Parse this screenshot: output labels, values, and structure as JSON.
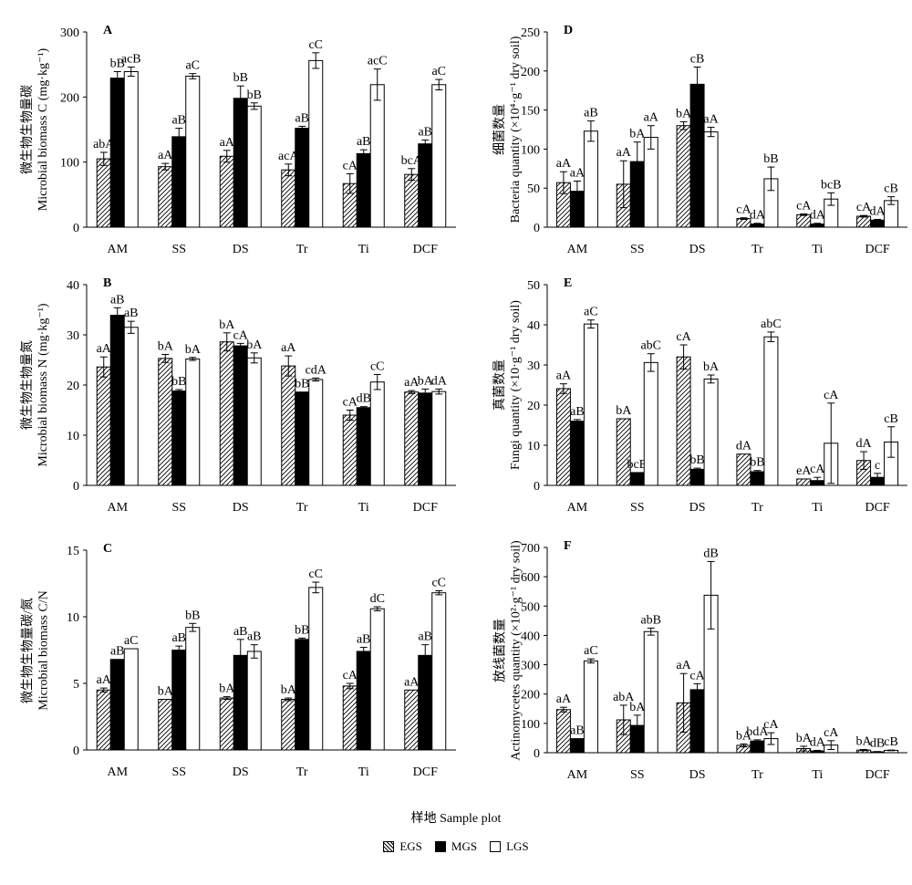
{
  "x_axis_label": "样地 Sample plot",
  "legend": [
    {
      "name": "EGS",
      "fill": "hatch"
    },
    {
      "name": "MGS",
      "fill": "solid"
    },
    {
      "name": "LGS",
      "fill": "open"
    }
  ],
  "chart_data": [
    {
      "panel": "A",
      "type": "bar",
      "ylabel_cn": "微生物生物量碳",
      "ylabel_en": "Microbial biomass C (mg·kg⁻¹)",
      "ylim": [
        0,
        300
      ],
      "yticks": [
        0,
        100,
        200,
        300
      ],
      "categories": [
        "AM",
        "SS",
        "DS",
        "Tr",
        "Ti",
        "DCF"
      ],
      "series": [
        {
          "name": "EGS",
          "values": [
            105,
            93,
            109,
            88,
            67,
            81
          ],
          "errors": [
            10,
            5,
            9,
            9,
            15,
            9
          ],
          "labels": [
            "abA",
            "aA",
            "aA",
            "acA",
            "cA",
            "bcA"
          ]
        },
        {
          "name": "MGS",
          "values": [
            229,
            139,
            198,
            152,
            113,
            128
          ],
          "errors": [
            10,
            13,
            19,
            3,
            6,
            6
          ],
          "labels": [
            "bB",
            "aB",
            "bB",
            "aB",
            "aB",
            "aB"
          ]
        },
        {
          "name": "LGS",
          "values": [
            239,
            232,
            186,
            256,
            219,
            219
          ],
          "errors": [
            7,
            4,
            5,
            12,
            24,
            8
          ],
          "labels": [
            "acB",
            "aC",
            "bB",
            "cC",
            "acC",
            "aC"
          ]
        }
      ]
    },
    {
      "panel": "D",
      "type": "bar",
      "ylabel_cn": "细菌数量",
      "ylabel_en": "Bacteria quantity (×10⁴·g⁻¹ dry soil)",
      "ylim": [
        0,
        250
      ],
      "yticks": [
        0,
        50,
        100,
        150,
        200,
        250
      ],
      "categories": [
        "AM",
        "SS",
        "DS",
        "Tr",
        "Ti",
        "DCF"
      ],
      "series": [
        {
          "name": "EGS",
          "values": [
            57,
            55,
            130,
            11,
            16,
            14
          ],
          "errors": [
            14,
            30,
            5,
            1,
            1,
            1
          ],
          "labels": [
            "aA",
            "aA",
            "bA",
            "cA",
            "cA",
            "cA"
          ]
        },
        {
          "name": "MGS",
          "values": [
            46,
            84,
            183,
            4,
            4,
            9
          ],
          "errors": [
            13,
            25,
            22,
            1,
            1,
            1
          ],
          "labels": [
            "aA",
            "bA",
            "cB",
            "dA",
            "dA",
            "dA"
          ]
        },
        {
          "name": "LGS",
          "values": [
            123,
            115,
            122,
            62,
            36,
            34
          ],
          "errors": [
            13,
            15,
            6,
            15,
            8,
            5
          ],
          "labels": [
            "aB",
            "aA",
            "aA",
            "bB",
            "bcB",
            "cB"
          ]
        }
      ]
    },
    {
      "panel": "B",
      "type": "bar",
      "ylabel_cn": "微生物生物量氮",
      "ylabel_en": "Microbial biomass N (mg·kg⁻¹)",
      "ylim": [
        0,
        40
      ],
      "yticks": [
        0,
        10,
        20,
        30,
        40
      ],
      "categories": [
        "AM",
        "SS",
        "DS",
        "Tr",
        "Ti",
        "DCF"
      ],
      "series": [
        {
          "name": "EGS",
          "values": [
            23.6,
            25.3,
            28.6,
            23.8,
            14,
            18.6
          ],
          "errors": [
            2,
            0.8,
            1.8,
            2,
            1,
            0.3
          ],
          "labels": [
            "aA",
            "bA",
            "bA",
            "aA",
            "cA",
            "aA"
          ]
        },
        {
          "name": "MGS",
          "values": [
            33.9,
            18.8,
            27.8,
            18.6,
            15.5,
            18.4
          ],
          "errors": [
            1.5,
            0.3,
            0.5,
            0,
            0.2,
            0.8
          ],
          "labels": [
            "aB",
            "bB",
            "cA",
            "bB",
            "dB",
            "bA"
          ]
        },
        {
          "name": "LGS",
          "values": [
            31.5,
            25.2,
            25.4,
            21.1,
            20.6,
            18.7
          ],
          "errors": [
            1.2,
            0.3,
            1,
            0.3,
            1.5,
            0.5
          ],
          "labels": [
            "aB",
            "bA",
            "bA",
            "cdA",
            "cC",
            "dA"
          ]
        }
      ]
    },
    {
      "panel": "E",
      "type": "bar",
      "ylabel_cn": "真菌数量",
      "ylabel_en": "Fungi quantity (×10·g⁻¹ dry soil)",
      "ylim": [
        0,
        50
      ],
      "yticks": [
        0,
        10,
        20,
        30,
        40,
        50
      ],
      "categories": [
        "AM",
        "SS",
        "DS",
        "Tr",
        "Ti",
        "DCF"
      ],
      "series": [
        {
          "name": "EGS",
          "values": [
            24.1,
            16.6,
            32,
            7.8,
            1.6,
            6.2
          ],
          "errors": [
            1.2,
            0,
            3,
            0,
            0,
            2.2
          ],
          "labels": [
            "aA",
            "bA",
            "cA",
            "dA",
            "eA",
            "dA"
          ]
        },
        {
          "name": "MGS",
          "values": [
            16,
            3.2,
            4,
            3.4,
            1.2,
            2
          ],
          "errors": [
            0.4,
            0,
            0.3,
            0.3,
            0.8,
            1
          ],
          "labels": [
            "aB",
            "bcB",
            "bB",
            "bB",
            "cA",
            "c"
          ]
        },
        {
          "name": "LGS",
          "values": [
            40.2,
            30.6,
            26.5,
            37,
            10.5,
            10.8
          ],
          "errors": [
            1,
            2.2,
            1,
            1.2,
            10,
            3.8
          ],
          "labels": [
            "aC",
            "abC",
            "bA",
            "abC",
            "cA",
            "cB"
          ]
        }
      ]
    },
    {
      "panel": "C",
      "type": "bar",
      "ylabel_cn": "微生物生物量碳/氮",
      "ylabel_en": "Microbial biomass C/N",
      "ylim": [
        0,
        15
      ],
      "yticks": [
        0,
        5,
        10,
        15
      ],
      "categories": [
        "AM",
        "SS",
        "DS",
        "Tr",
        "Ti",
        "DCF"
      ],
      "series": [
        {
          "name": "EGS",
          "values": [
            4.5,
            3.8,
            3.9,
            3.8,
            4.8,
            4.5
          ],
          "errors": [
            0.15,
            0,
            0.1,
            0.1,
            0.2,
            0
          ],
          "labels": [
            "aA",
            "bA",
            "bA",
            "bA",
            "cA",
            "aA"
          ]
        },
        {
          "name": "MGS",
          "values": [
            6.8,
            7.5,
            7.1,
            8.3,
            7.4,
            7.1
          ],
          "errors": [
            0,
            0.3,
            1.2,
            0.1,
            0.3,
            0.8
          ],
          "labels": [
            "aB",
            "aB",
            "aB",
            "bB",
            "aB",
            "aB"
          ]
        },
        {
          "name": "LGS",
          "values": [
            7.6,
            9.2,
            7.4,
            12.2,
            10.6,
            11.8
          ],
          "errors": [
            0,
            0.3,
            0.5,
            0.4,
            0.15,
            0.15
          ],
          "labels": [
            "aC",
            "bB",
            "aB",
            "cC",
            "dC",
            "cC"
          ]
        }
      ]
    },
    {
      "panel": "F",
      "type": "bar",
      "ylabel_cn": "放线菌数量",
      "ylabel_en": "Actinomycetes quantity (×10²·g⁻¹ dry soil)",
      "ylim": [
        0,
        700
      ],
      "yticks": [
        0,
        100,
        200,
        300,
        400,
        500,
        600,
        700
      ],
      "categories": [
        "AM",
        "SS",
        "DS",
        "Tr",
        "Ti",
        "DCF"
      ],
      "series": [
        {
          "name": "EGS",
          "values": [
            147,
            112,
            170,
            25,
            14,
            9
          ],
          "errors": [
            8,
            50,
            100,
            5,
            8,
            2
          ],
          "labels": [
            "aA",
            "abA",
            "aA",
            "bA",
            "bA",
            "bA"
          ]
        },
        {
          "name": "MGS",
          "values": [
            48,
            93,
            215,
            40,
            6,
            3
          ],
          "errors": [
            0,
            35,
            20,
            4,
            2,
            1
          ],
          "labels": [
            "aB",
            "bA",
            "cA",
            "bdA",
            "dA",
            "dB"
          ]
        },
        {
          "name": "LGS",
          "values": [
            313,
            413,
            537,
            48,
            26,
            8
          ],
          "errors": [
            7,
            12,
            115,
            20,
            15,
            1
          ],
          "labels": [
            "aC",
            "abB",
            "dB",
            "cA",
            "cA",
            "cB"
          ]
        }
      ]
    }
  ]
}
